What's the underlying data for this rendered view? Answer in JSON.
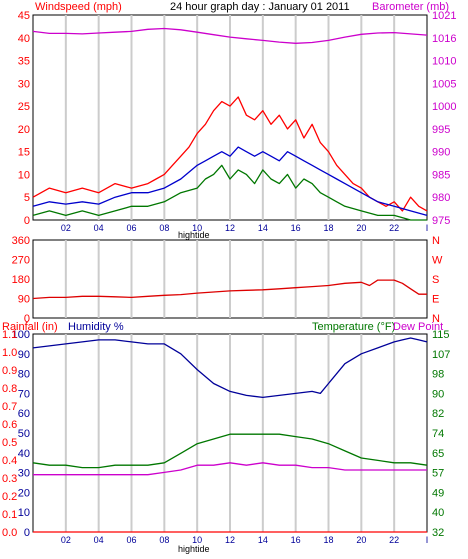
{
  "colors": {
    "red": "#ff0000",
    "darkred": "#dd0000",
    "blue": "#0000cc",
    "navy": "#000099",
    "green": "#007700",
    "magenta": "#cc00cc",
    "grid": "#cccccc",
    "frame": "#000000"
  },
  "titles": {
    "main": "24 hour graph day : January 01 2011",
    "windspeed": "Windspeed (mph)",
    "barometer": "Barometer (mb)",
    "rainfall": "Rainfall (in)",
    "humidity": "Humidity %",
    "temperature": "Temperature (°F)",
    "dewpoint": "Dew Point",
    "hightide_top": "hightide",
    "hightide_bottom": "hightide"
  },
  "x_ticks": [
    "02",
    "04",
    "06",
    "08",
    "10",
    "12",
    "14",
    "16",
    "18",
    "20",
    "22",
    "I"
  ],
  "chart_data": [
    {
      "type": "line",
      "panel": "wind-barometer",
      "x_range": [
        0,
        24
      ],
      "left_axis": {
        "label": "Windspeed (mph)",
        "ylim": [
          0,
          45
        ],
        "ticks": [
          0,
          5,
          10,
          15,
          20,
          25,
          30,
          35,
          40,
          45
        ]
      },
      "right_axis": {
        "label": "Barometer (mb)",
        "ylim": [
          975,
          1025
        ],
        "ticks": [
          975,
          980,
          985,
          990,
          995,
          1000,
          1005,
          1010,
          1016,
          1021
        ]
      },
      "series": [
        {
          "name": "Gust",
          "axis": "left",
          "color": "red",
          "x": [
            0,
            1,
            2,
            3,
            4,
            5,
            6,
            7,
            7.5,
            8,
            8.5,
            9,
            9.5,
            10,
            10.5,
            11,
            11.5,
            12,
            12.5,
            13,
            13.5,
            14,
            14.5,
            15,
            15.5,
            16,
            16.5,
            17,
            17.5,
            18,
            18.5,
            19,
            19.5,
            20,
            20.5,
            21,
            21.5,
            22,
            22.5,
            23,
            23.5,
            24
          ],
          "values": [
            5,
            7,
            6,
            7,
            6,
            8,
            7,
            8,
            9,
            10,
            12,
            14,
            16,
            19,
            21,
            24,
            26,
            25,
            27,
            23,
            22,
            24,
            21,
            23,
            20,
            22,
            18,
            21,
            17,
            15,
            12,
            10,
            8,
            7,
            5,
            4,
            3,
            4,
            2,
            5,
            3,
            2
          ]
        },
        {
          "name": "Average",
          "axis": "left",
          "color": "blue",
          "x": [
            0,
            1,
            2,
            3,
            4,
            5,
            6,
            7,
            8,
            9,
            10,
            10.5,
            11,
            11.5,
            12,
            12.5,
            13,
            13.5,
            14,
            14.5,
            15,
            15.5,
            16,
            16.5,
            17,
            17.5,
            18,
            18.5,
            19,
            20,
            21,
            22,
            23,
            24
          ],
          "values": [
            3,
            4,
            3.5,
            4,
            3.5,
            5,
            6,
            6,
            7,
            9,
            12,
            13,
            14,
            15,
            14,
            16,
            15,
            14,
            15,
            14,
            13,
            15,
            14,
            13,
            12,
            11,
            10,
            9,
            8,
            6,
            4,
            3,
            2,
            1
          ]
        },
        {
          "name": "Speed",
          "axis": "left",
          "color": "green",
          "x": [
            0,
            1,
            2,
            3,
            4,
            5,
            6,
            7,
            8,
            9,
            10,
            10.5,
            11,
            11.5,
            12,
            12.5,
            13,
            13.5,
            14,
            14.5,
            15,
            15.5,
            16,
            16.5,
            17,
            17.5,
            18,
            18.5,
            19,
            20,
            21,
            22,
            23,
            24
          ],
          "values": [
            1,
            2,
            1,
            2,
            1,
            2,
            3,
            3,
            4,
            6,
            7,
            9,
            10,
            12,
            9,
            11,
            10,
            8,
            11,
            9,
            8,
            10,
            7,
            9,
            8,
            6,
            5,
            4,
            3,
            2,
            1,
            1,
            0,
            0
          ]
        },
        {
          "name": "Barometer",
          "axis": "right",
          "color": "magenta",
          "x": [
            0,
            1,
            2,
            3,
            4,
            5,
            6,
            7,
            8,
            9,
            10,
            11,
            12,
            13,
            14,
            15,
            16,
            17,
            18,
            19,
            20,
            21,
            22,
            23,
            24
          ],
          "values": [
            1021,
            1020.5,
            1020.5,
            1020.4,
            1020.6,
            1020.8,
            1021,
            1021.5,
            1021.7,
            1021.4,
            1020.8,
            1020.2,
            1019.6,
            1019.2,
            1018.8,
            1018.4,
            1018.1,
            1018.3,
            1018.8,
            1019.6,
            1020.3,
            1020.6,
            1020.7,
            1020.4,
            1020.1
          ]
        }
      ]
    },
    {
      "type": "line",
      "panel": "wind-direction",
      "x_range": [
        0,
        24
      ],
      "left_axis": {
        "ylim": [
          0,
          360
        ],
        "ticks": [
          0,
          90,
          180,
          270,
          360
        ]
      },
      "right_axis": {
        "ticks": [
          "N",
          "E",
          "S",
          "W",
          "N"
        ]
      },
      "series": [
        {
          "name": "Direction",
          "axis": "left",
          "color": "darkred",
          "x": [
            0,
            1,
            2,
            3,
            4,
            5,
            6,
            7,
            8,
            9,
            10,
            11,
            12,
            13,
            14,
            15,
            16,
            17,
            18,
            19,
            20,
            20.5,
            21,
            22,
            22.5,
            23,
            23.5,
            24
          ],
          "values": [
            90,
            95,
            95,
            100,
            100,
            98,
            95,
            100,
            105,
            108,
            115,
            120,
            125,
            128,
            130,
            135,
            140,
            145,
            150,
            160,
            165,
            150,
            175,
            175,
            160,
            135,
            110,
            110
          ]
        }
      ]
    },
    {
      "type": "line",
      "panel": "rain-humidity-temperature",
      "x_range": [
        0,
        24
      ],
      "left_axis": {
        "label": "Rainfall (in) / Humidity %",
        "ylim": [
          0,
          100
        ],
        "ticks": [
          "0",
          "10",
          "20",
          "30",
          "40",
          "50",
          "60",
          "70",
          "80",
          "90",
          "100"
        ],
        "rain_ticks": [
          "0.0",
          "0.1",
          "0.2",
          "0.3",
          "0.4",
          "0.5",
          "0.6",
          "0.7",
          "0.8",
          "0.9",
          "1.0",
          "1.1"
        ]
      },
      "right_axis": {
        "label": "Temperature (°F)",
        "ylim": [
          32,
          115
        ],
        "ticks": [
          32,
          40,
          49,
          57,
          65,
          74,
          82,
          90,
          98,
          107,
          115
        ]
      },
      "series": [
        {
          "name": "Humidity",
          "axis": "left",
          "color": "navy",
          "x": [
            0,
            1,
            2,
            3,
            4,
            5,
            6,
            7,
            8,
            9,
            10,
            11,
            12,
            13,
            14,
            15,
            16,
            17,
            17.5,
            18,
            19,
            20,
            21,
            22,
            22.5,
            23,
            23.5,
            24
          ],
          "values": [
            93,
            94,
            95,
            96,
            97,
            97,
            96,
            95,
            95,
            90,
            82,
            75,
            71,
            69,
            68,
            69,
            70,
            71,
            70,
            75,
            85,
            90,
            93,
            96,
            97,
            98,
            97,
            96
          ]
        },
        {
          "name": "Temperature",
          "axis": "right",
          "color": "green",
          "x": [
            0,
            1,
            2,
            3,
            4,
            5,
            6,
            7,
            8,
            9,
            10,
            11,
            12,
            13,
            14,
            15,
            16,
            17,
            18,
            19,
            20,
            21,
            22,
            23,
            24
          ],
          "values": [
            61,
            60,
            60,
            59,
            59,
            60,
            60,
            60,
            61,
            65,
            69,
            71,
            73,
            73,
            73,
            73,
            72,
            71,
            69,
            66,
            63,
            62,
            61,
            61,
            60
          ]
        },
        {
          "name": "Dew Point",
          "axis": "right",
          "color": "magenta",
          "x": [
            0,
            1,
            2,
            3,
            4,
            5,
            6,
            7,
            8,
            9,
            10,
            11,
            12,
            13,
            14,
            15,
            16,
            17,
            18,
            19,
            20,
            21,
            22,
            23,
            24
          ],
          "values": [
            56,
            56,
            56,
            56,
            56,
            56,
            56,
            56,
            57,
            58,
            60,
            60,
            61,
            60,
            61,
            60,
            60,
            59,
            59,
            58,
            58,
            58,
            58,
            58,
            58
          ]
        },
        {
          "name": "Rainfall",
          "axis": "left",
          "color": "red",
          "x": [
            0,
            24
          ],
          "values": [
            0,
            0
          ]
        }
      ]
    }
  ]
}
